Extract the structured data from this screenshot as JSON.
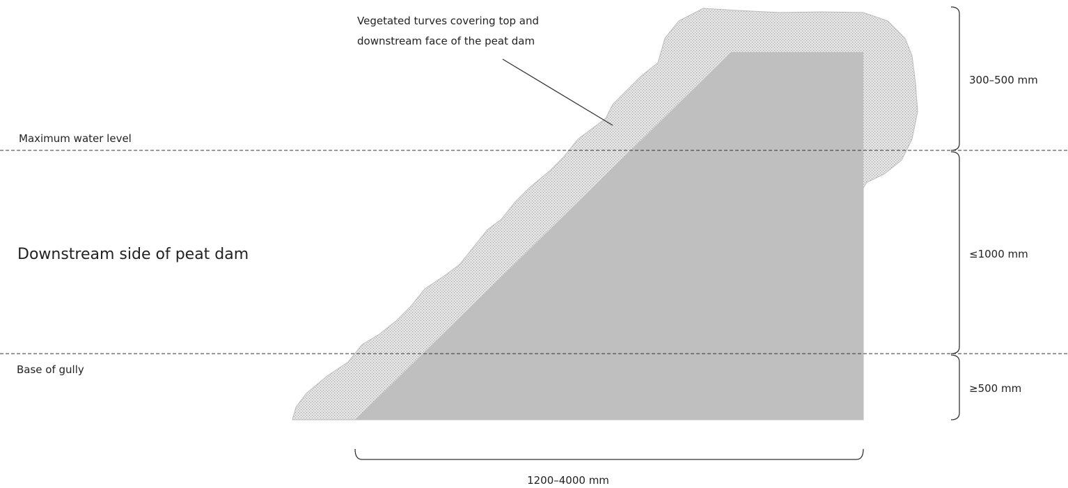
{
  "annotation": {
    "lines": [
      "Vegetated turves covering top and",
      "downstream  face of the  peat dam"
    ]
  },
  "levels": {
    "max_water": "Maximum  water level",
    "base": "Base of gully"
  },
  "side_label": "Downstream  side of peat dam",
  "dimensions": {
    "top": "300–500 mm",
    "middle": "≤1000 mm",
    "bottom": "≥500 mm",
    "width": "1200–4000  mm"
  }
}
